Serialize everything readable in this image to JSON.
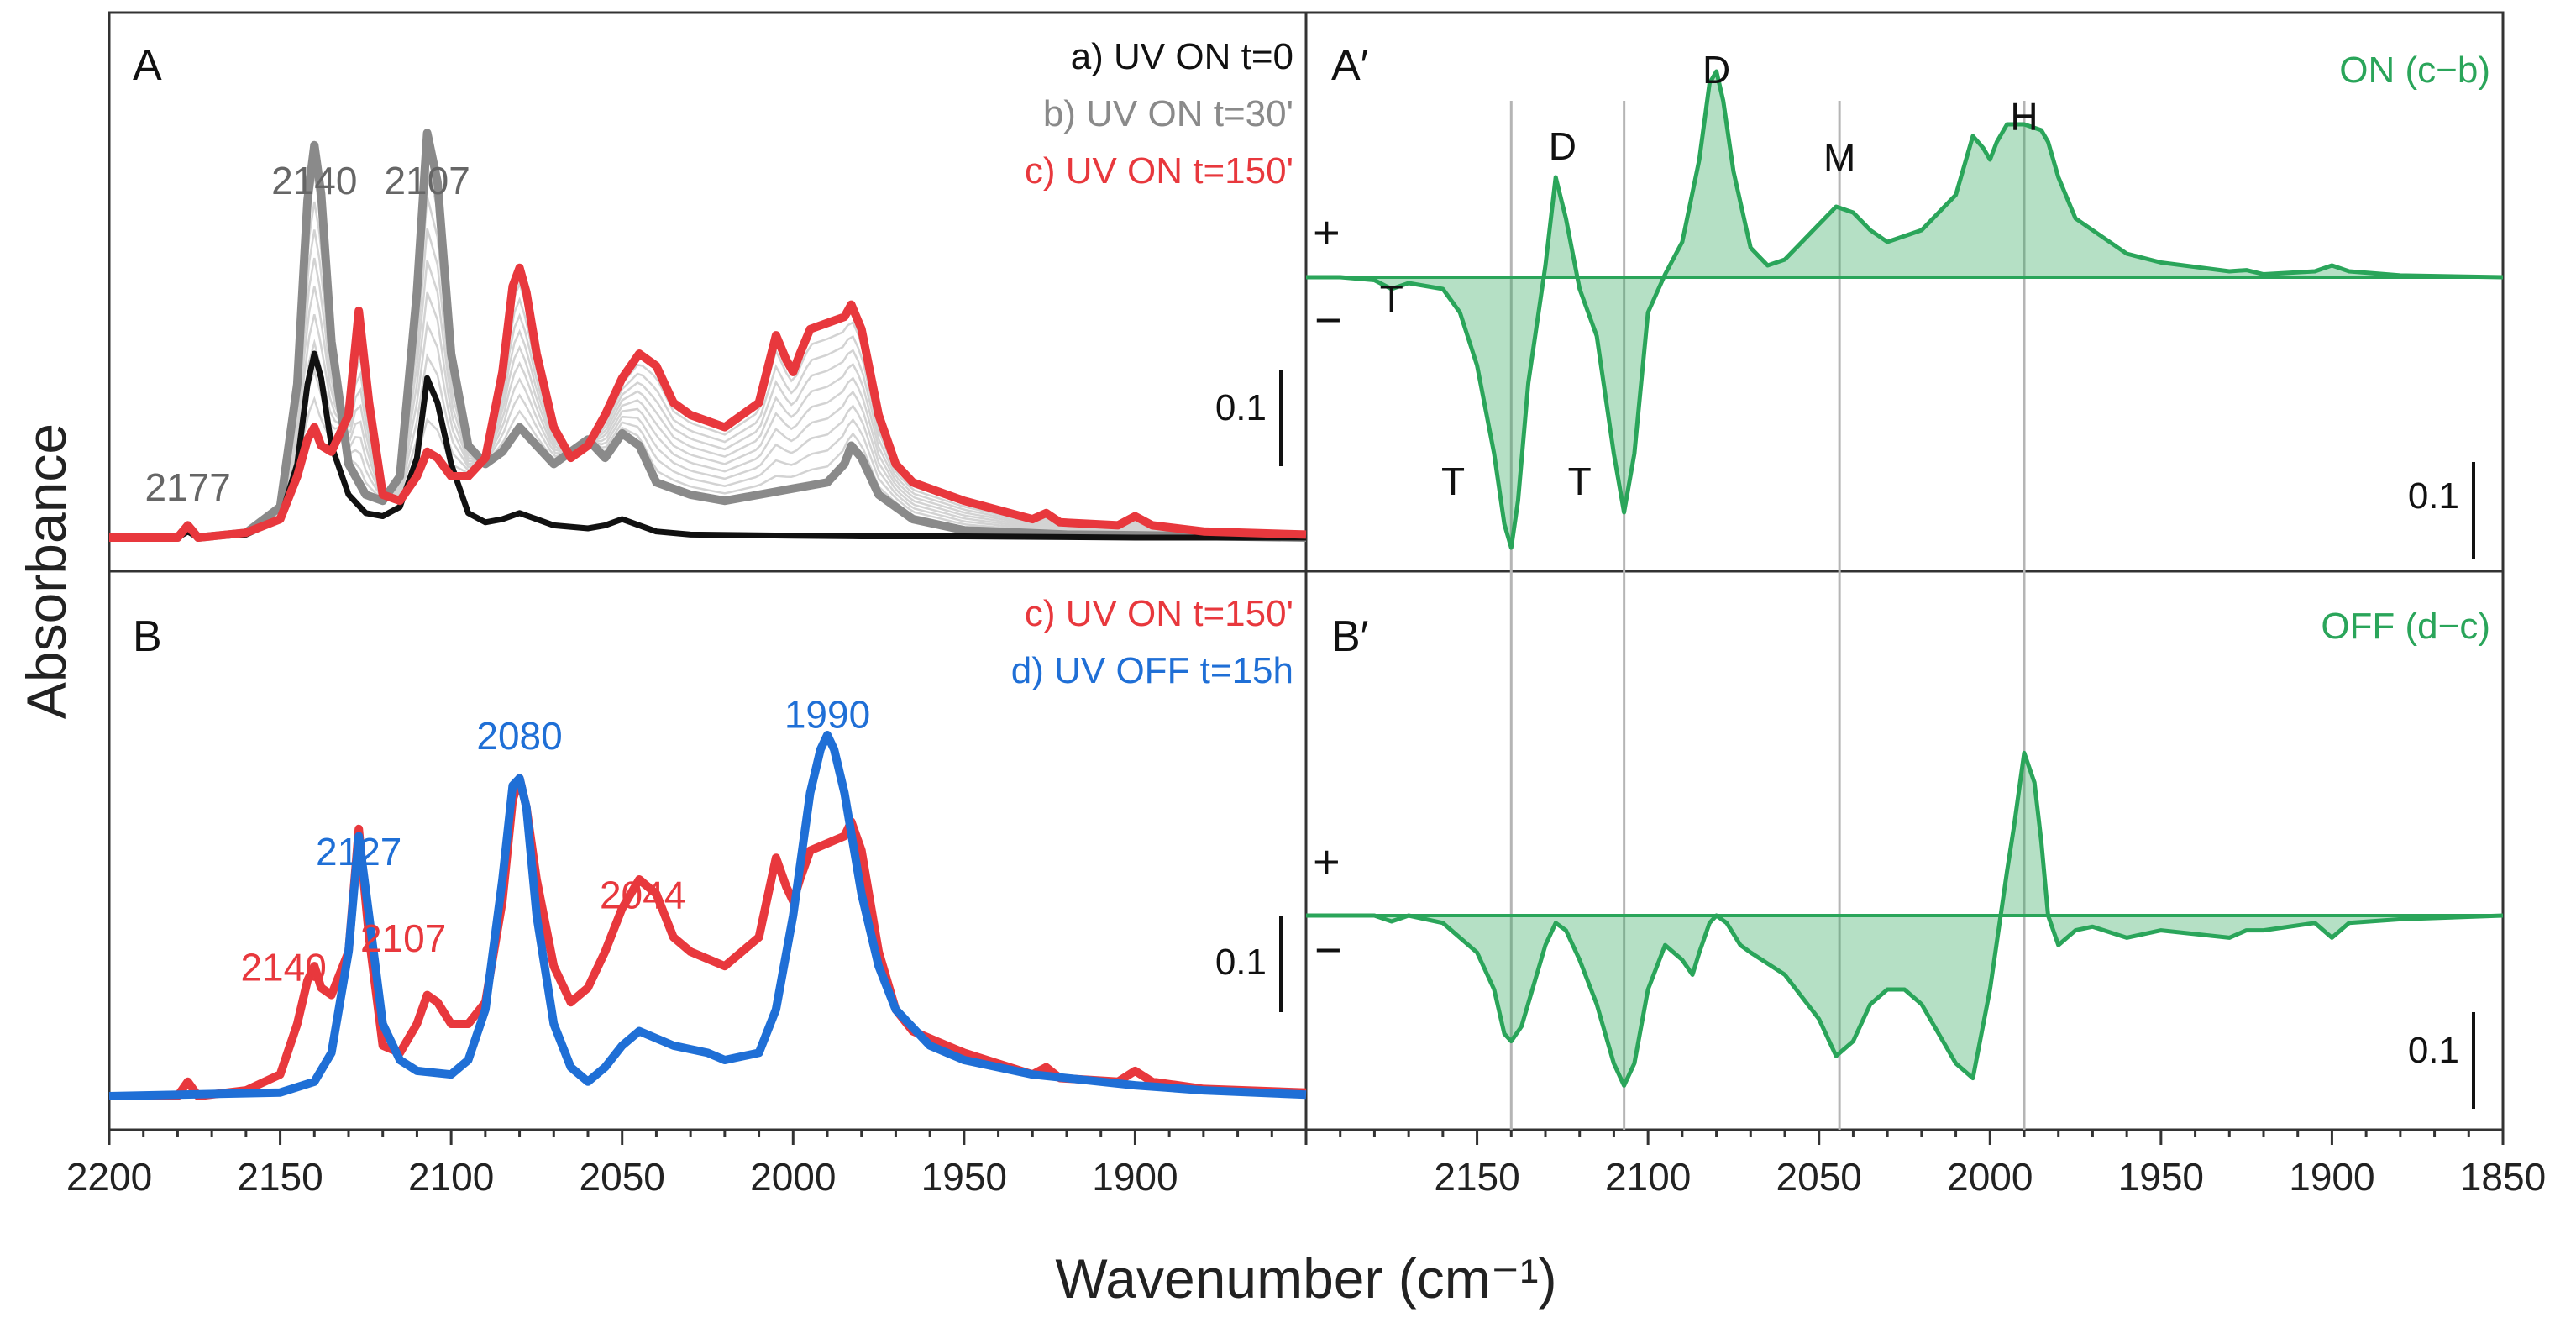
{
  "chart_data": [
    {
      "panel": "A",
      "type": "line",
      "xlabel": "Wavenumber (cm⁻¹)",
      "ylabel": "Absorbance",
      "xlim": [
        2200,
        1850
      ],
      "xticks": [
        "2200",
        "2150",
        "2100",
        "2050",
        "2000",
        "1950",
        "1900"
      ],
      "scale_bar_label": "0.1",
      "legend": [
        {
          "text": "a) UV ON t=0",
          "color": "#111111"
        },
        {
          "text": "b) UV ON t=30'",
          "color": "#8a8a8a"
        },
        {
          "text": "c) UV ON t=150'",
          "color": "#e8383d"
        }
      ],
      "peak_labels": [
        {
          "text": "2177",
          "x": 2177,
          "y": 0.06,
          "color": "#666666"
        },
        {
          "text": "2140",
          "x": 2140,
          "y": 0.56,
          "color": "#666666"
        },
        {
          "text": "2107",
          "x": 2107,
          "y": 0.56,
          "color": "#666666"
        }
      ],
      "series": [
        {
          "name": "a) UV ON t=0",
          "color": "#111111",
          "width": 7,
          "x": [
            2200,
            2180,
            2177,
            2174,
            2160,
            2150,
            2145,
            2142,
            2140,
            2138,
            2135,
            2130,
            2125,
            2120,
            2115,
            2110,
            2107,
            2104,
            2100,
            2095,
            2090,
            2085,
            2080,
            2075,
            2070,
            2060,
            2055,
            2050,
            2045,
            2040,
            2030,
            2000,
            1980,
            1950,
            1900,
            1850
          ],
          "y": [
            0,
            0,
            0.01,
            0,
            0.005,
            0.03,
            0.12,
            0.25,
            0.3,
            0.26,
            0.15,
            0.07,
            0.04,
            0.035,
            0.05,
            0.13,
            0.26,
            0.22,
            0.12,
            0.04,
            0.025,
            0.03,
            0.04,
            0.03,
            0.02,
            0.015,
            0.02,
            0.03,
            0.02,
            0.01,
            0.005,
            0.003,
            0.002,
            0.002,
            0,
            0
          ]
        },
        {
          "name": "b) UV ON t=30'",
          "color": "#8a8a8a",
          "width": 10,
          "x": [
            2200,
            2180,
            2177,
            2174,
            2160,
            2150,
            2145,
            2142,
            2140,
            2138,
            2135,
            2130,
            2125,
            2120,
            2115,
            2110,
            2107,
            2104,
            2100,
            2095,
            2090,
            2085,
            2080,
            2075,
            2070,
            2065,
            2060,
            2055,
            2050,
            2045,
            2040,
            2030,
            2020,
            2010,
            2000,
            1995,
            1990,
            1985,
            1983,
            1980,
            1975,
            1965,
            1950,
            1920,
            1900,
            1850
          ],
          "y": [
            0,
            0,
            0.02,
            0,
            0.008,
            0.05,
            0.25,
            0.55,
            0.64,
            0.56,
            0.32,
            0.12,
            0.07,
            0.06,
            0.1,
            0.4,
            0.66,
            0.58,
            0.3,
            0.15,
            0.12,
            0.14,
            0.18,
            0.15,
            0.12,
            0.14,
            0.16,
            0.13,
            0.17,
            0.15,
            0.09,
            0.07,
            0.06,
            0.07,
            0.08,
            0.085,
            0.09,
            0.12,
            0.15,
            0.13,
            0.07,
            0.03,
            0.012,
            0.005,
            0.004,
            0
          ]
        },
        {
          "name": "c) UV ON t=150'",
          "color": "#e8383d",
          "width": 10,
          "x": [
            2200,
            2180,
            2177,
            2174,
            2160,
            2150,
            2145,
            2142,
            2140,
            2138,
            2135,
            2130,
            2127,
            2124,
            2120,
            2115,
            2110,
            2107,
            2104,
            2100,
            2095,
            2090,
            2085,
            2082,
            2080,
            2078,
            2075,
            2070,
            2065,
            2060,
            2055,
            2050,
            2045,
            2040,
            2035,
            2030,
            2020,
            2010,
            2005,
            2002,
            2000,
            1998,
            1995,
            1990,
            1985,
            1983,
            1980,
            1975,
            1970,
            1965,
            1950,
            1930,
            1926,
            1922,
            1905,
            1900,
            1895,
            1880,
            1850
          ],
          "y": [
            0,
            0,
            0.02,
            0,
            0.008,
            0.03,
            0.1,
            0.16,
            0.18,
            0.15,
            0.14,
            0.2,
            0.37,
            0.22,
            0.07,
            0.06,
            0.1,
            0.14,
            0.13,
            0.1,
            0.1,
            0.13,
            0.27,
            0.41,
            0.44,
            0.4,
            0.3,
            0.18,
            0.13,
            0.15,
            0.2,
            0.26,
            0.3,
            0.28,
            0.22,
            0.2,
            0.18,
            0.22,
            0.33,
            0.29,
            0.27,
            0.3,
            0.34,
            0.35,
            0.36,
            0.38,
            0.34,
            0.2,
            0.12,
            0.09,
            0.06,
            0.03,
            0.04,
            0.025,
            0.02,
            0.035,
            0.02,
            0.01,
            0.005
          ]
        }
      ]
    },
    {
      "panel": "B",
      "type": "line",
      "xlim": [
        2200,
        1850
      ],
      "scale_bar_label": "0.1",
      "legend": [
        {
          "text": "c) UV ON t=150'",
          "color": "#e8383d"
        },
        {
          "text": "d) UV OFF t=15h",
          "color": "#1f6fd6"
        }
      ],
      "peak_labels": [
        {
          "text": "2140",
          "x": 2149,
          "y": 0.16,
          "color": "#e8383d"
        },
        {
          "text": "2107",
          "x": 2114,
          "y": 0.2,
          "color": "#e8383d"
        },
        {
          "text": "2044",
          "x": 2044,
          "y": 0.26,
          "color": "#e8383d"
        },
        {
          "text": "2127",
          "x": 2127,
          "y": 0.32,
          "color": "#1f6fd6"
        },
        {
          "text": "2080",
          "x": 2080,
          "y": 0.48,
          "color": "#1f6fd6"
        },
        {
          "text": "1990",
          "x": 1990,
          "y": 0.51,
          "color": "#1f6fd6"
        }
      ],
      "series": [
        {
          "name": "c) UV ON t=150'",
          "color": "#e8383d",
          "width": 10,
          "x": [
            2200,
            2180,
            2177,
            2174,
            2160,
            2150,
            2145,
            2142,
            2140,
            2138,
            2135,
            2130,
            2127,
            2124,
            2120,
            2115,
            2110,
            2107,
            2104,
            2100,
            2095,
            2090,
            2085,
            2082,
            2080,
            2078,
            2075,
            2070,
            2065,
            2060,
            2055,
            2050,
            2045,
            2040,
            2035,
            2030,
            2020,
            2010,
            2005,
            2002,
            2000,
            1998,
            1995,
            1990,
            1985,
            1983,
            1980,
            1975,
            1970,
            1965,
            1950,
            1930,
            1926,
            1922,
            1905,
            1900,
            1895,
            1880,
            1850
          ],
          "y": [
            0,
            0,
            0.02,
            0,
            0.008,
            0.03,
            0.1,
            0.16,
            0.18,
            0.15,
            0.14,
            0.2,
            0.37,
            0.22,
            0.07,
            0.06,
            0.1,
            0.14,
            0.13,
            0.1,
            0.1,
            0.13,
            0.27,
            0.41,
            0.44,
            0.4,
            0.3,
            0.18,
            0.13,
            0.15,
            0.2,
            0.26,
            0.3,
            0.28,
            0.22,
            0.2,
            0.18,
            0.22,
            0.33,
            0.29,
            0.27,
            0.3,
            0.34,
            0.35,
            0.36,
            0.38,
            0.34,
            0.2,
            0.12,
            0.09,
            0.06,
            0.03,
            0.04,
            0.025,
            0.02,
            0.035,
            0.02,
            0.01,
            0.005
          ]
        },
        {
          "name": "d) UV OFF t=15h",
          "color": "#1f6fd6",
          "width": 10,
          "x": [
            2200,
            2150,
            2140,
            2135,
            2130,
            2127,
            2124,
            2120,
            2115,
            2110,
            2100,
            2095,
            2090,
            2085,
            2082,
            2080,
            2078,
            2075,
            2070,
            2065,
            2060,
            2055,
            2050,
            2045,
            2040,
            2035,
            2030,
            2025,
            2020,
            2010,
            2005,
            2000,
            1995,
            1992,
            1990,
            1988,
            1985,
            1980,
            1975,
            1970,
            1960,
            1950,
            1930,
            1900,
            1880,
            1850
          ],
          "y": [
            0,
            0.005,
            0.02,
            0.06,
            0.2,
            0.36,
            0.25,
            0.1,
            0.05,
            0.035,
            0.03,
            0.05,
            0.12,
            0.3,
            0.43,
            0.44,
            0.4,
            0.25,
            0.1,
            0.04,
            0.02,
            0.04,
            0.07,
            0.09,
            0.08,
            0.07,
            0.065,
            0.06,
            0.05,
            0.06,
            0.12,
            0.25,
            0.42,
            0.48,
            0.5,
            0.48,
            0.42,
            0.28,
            0.18,
            0.12,
            0.07,
            0.05,
            0.03,
            0.015,
            0.008,
            0.002
          ]
        }
      ]
    },
    {
      "panel": "A′",
      "type": "area",
      "title": "ON (c−b)",
      "xlim": [
        2200,
        1850
      ],
      "xticks": [
        "2150",
        "2100",
        "2050",
        "2000",
        "1950",
        "1900",
        "1850"
      ],
      "scale_bar_label": "0.1",
      "signs": [
        "+",
        "−"
      ],
      "color": "#2aa55a",
      "band_labels": [
        {
          "text": "T",
          "x": 2175,
          "y": -0.06
        },
        {
          "text": "T",
          "x": 2157,
          "y": -0.37
        },
        {
          "text": "T",
          "x": 2120,
          "y": -0.37
        },
        {
          "text": "D",
          "x": 2125,
          "y": 0.2
        },
        {
          "text": "D",
          "x": 2080,
          "y": 0.33
        },
        {
          "text": "M",
          "x": 2044,
          "y": 0.18
        },
        {
          "text": "H",
          "x": 1990,
          "y": 0.25
        }
      ],
      "x": [
        2200,
        2190,
        2180,
        2175,
        2170,
        2160,
        2155,
        2150,
        2145,
        2142,
        2140,
        2138,
        2135,
        2130,
        2127,
        2124,
        2120,
        2115,
        2110,
        2107,
        2104,
        2100,
        2095,
        2090,
        2085,
        2082,
        2080,
        2078,
        2075,
        2070,
        2065,
        2060,
        2055,
        2050,
        2045,
        2040,
        2035,
        2030,
        2020,
        2010,
        2005,
        2002,
        2000,
        1998,
        1995,
        1990,
        1985,
        1983,
        1980,
        1975,
        1970,
        1960,
        1950,
        1930,
        1925,
        1920,
        1905,
        1900,
        1895,
        1880,
        1850
      ],
      "y": [
        0,
        0,
        -0.005,
        -0.02,
        -0.01,
        -0.02,
        -0.06,
        -0.15,
        -0.3,
        -0.42,
        -0.46,
        -0.38,
        -0.18,
        0.02,
        0.17,
        0.1,
        -0.02,
        -0.1,
        -0.3,
        -0.4,
        -0.3,
        -0.06,
        0.005,
        0.06,
        0.2,
        0.33,
        0.35,
        0.3,
        0.18,
        0.05,
        0.02,
        0.03,
        0.06,
        0.09,
        0.12,
        0.11,
        0.08,
        0.06,
        0.08,
        0.14,
        0.24,
        0.22,
        0.2,
        0.23,
        0.26,
        0.26,
        0.25,
        0.23,
        0.17,
        0.1,
        0.08,
        0.04,
        0.025,
        0.01,
        0.012,
        0.005,
        0.01,
        0.02,
        0.01,
        0.003,
        0
      ]
    },
    {
      "panel": "B′",
      "type": "area",
      "title": "OFF (d−c)",
      "xlim": [
        2200,
        1850
      ],
      "scale_bar_label": "0.1",
      "signs": [
        "+",
        "−"
      ],
      "color": "#2aa55a",
      "x": [
        2200,
        2180,
        2175,
        2170,
        2160,
        2150,
        2145,
        2142,
        2140,
        2137,
        2130,
        2127,
        2124,
        2120,
        2115,
        2110,
        2107,
        2104,
        2100,
        2095,
        2090,
        2087,
        2085,
        2082,
        2080,
        2077,
        2073,
        2070,
        2060,
        2050,
        2045,
        2040,
        2035,
        2030,
        2025,
        2020,
        2010,
        2005,
        2000,
        1995,
        1993,
        1990,
        1987,
        1985,
        1983,
        1980,
        1975,
        1970,
        1960,
        1950,
        1930,
        1925,
        1920,
        1905,
        1900,
        1895,
        1880,
        1850
      ],
      "y": [
        0,
        0,
        -0.008,
        0,
        -0.01,
        -0.05,
        -0.1,
        -0.16,
        -0.17,
        -0.15,
        -0.04,
        -0.01,
        -0.02,
        -0.06,
        -0.12,
        -0.2,
        -0.23,
        -0.2,
        -0.1,
        -0.04,
        -0.06,
        -0.08,
        -0.05,
        -0.01,
        0,
        -0.01,
        -0.04,
        -0.05,
        -0.08,
        -0.14,
        -0.19,
        -0.17,
        -0.12,
        -0.1,
        -0.1,
        -0.12,
        -0.2,
        -0.22,
        -0.1,
        0.06,
        0.12,
        0.22,
        0.18,
        0.1,
        0,
        -0.04,
        -0.02,
        -0.015,
        -0.03,
        -0.02,
        -0.03,
        -0.02,
        -0.02,
        -0.01,
        -0.03,
        -0.01,
        -0.005,
        0
      ]
    }
  ],
  "guide_lines_cm": [
    2140,
    2107,
    2044,
    1990
  ]
}
